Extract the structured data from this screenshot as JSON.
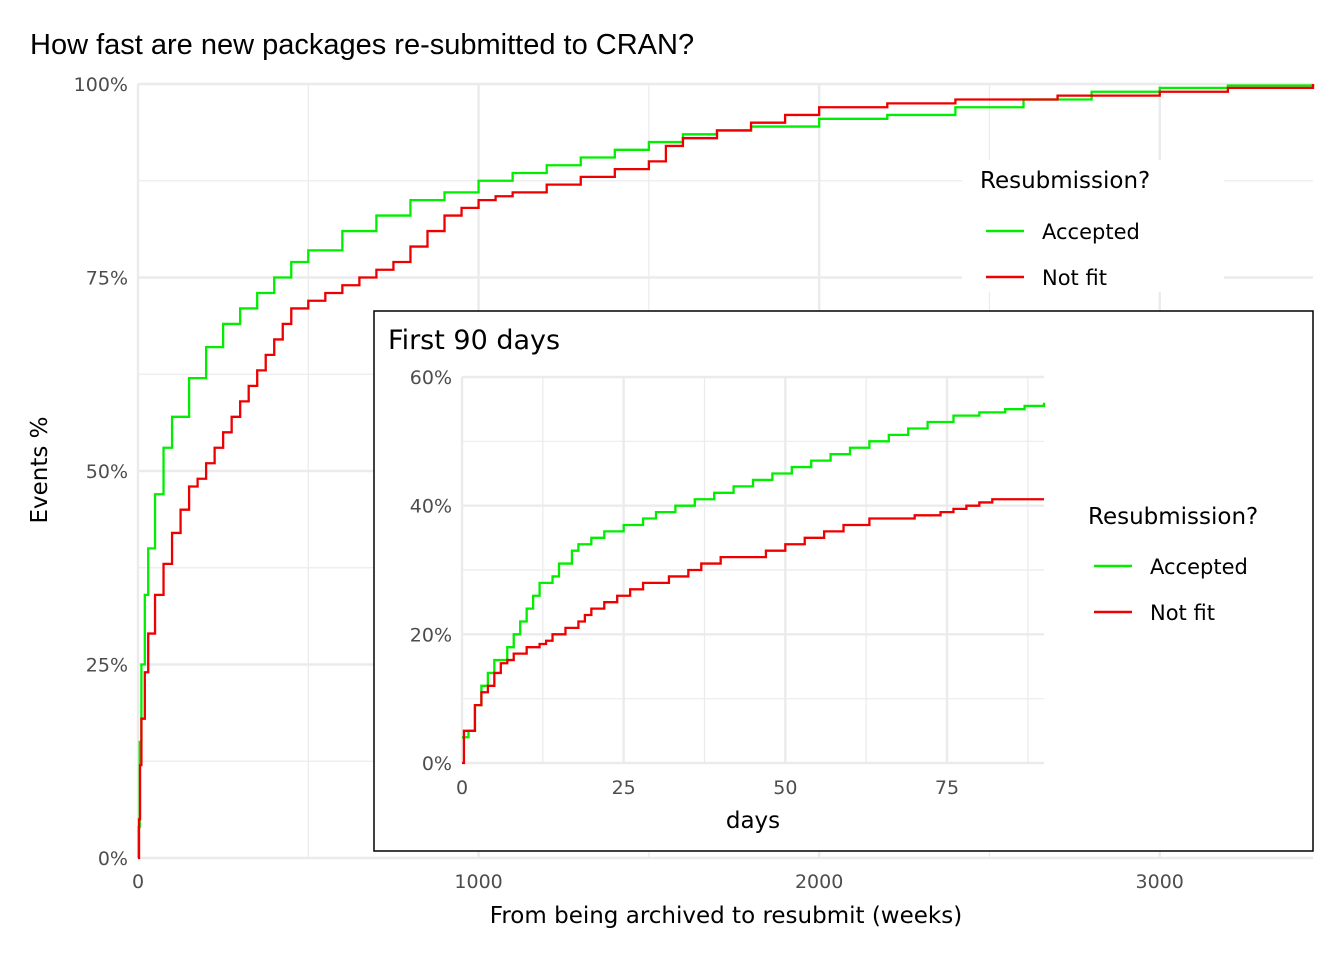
{
  "chart_data": [
    {
      "type": "line",
      "step": true,
      "title": "How fast are new packages re-submitted to CRAN?",
      "xlabel": "From being archived to resubmit (weeks)",
      "ylabel": "Events %",
      "xlim": [
        0,
        3450
      ],
      "ylim": [
        0,
        1
      ],
      "x_ticks": [
        0,
        1000,
        2000,
        3000
      ],
      "x_tick_labels": [
        "0",
        "1000",
        "2000",
        "3000"
      ],
      "y_ticks": [
        0,
        0.25,
        0.5,
        0.75,
        1
      ],
      "y_tick_labels": [
        "0%",
        "25%",
        "50%",
        "75%",
        "100%"
      ],
      "grid": true,
      "legend": {
        "title": "Resubmission?",
        "position": "top-right"
      },
      "series": [
        {
          "name": "Accepted",
          "color": "#00EE00",
          "points": [
            [
              0,
              0
            ],
            [
              2,
              0.04
            ],
            [
              5,
              0.15
            ],
            [
              10,
              0.25
            ],
            [
              20,
              0.34
            ],
            [
              30,
              0.4
            ],
            [
              50,
              0.47
            ],
            [
              75,
              0.53
            ],
            [
              100,
              0.57
            ],
            [
              150,
              0.62
            ],
            [
              200,
              0.66
            ],
            [
              250,
              0.69
            ],
            [
              300,
              0.71
            ],
            [
              350,
              0.73
            ],
            [
              400,
              0.75
            ],
            [
              450,
              0.77
            ],
            [
              500,
              0.785
            ],
            [
              600,
              0.81
            ],
            [
              700,
              0.83
            ],
            [
              800,
              0.85
            ],
            [
              900,
              0.86
            ],
            [
              1000,
              0.875
            ],
            [
              1100,
              0.885
            ],
            [
              1200,
              0.895
            ],
            [
              1300,
              0.905
            ],
            [
              1400,
              0.915
            ],
            [
              1500,
              0.925
            ],
            [
              1600,
              0.935
            ],
            [
              1700,
              0.94
            ],
            [
              1800,
              0.945
            ],
            [
              2000,
              0.955
            ],
            [
              2200,
              0.96
            ],
            [
              2400,
              0.97
            ],
            [
              2600,
              0.98
            ],
            [
              2800,
              0.99
            ],
            [
              3000,
              0.995
            ],
            [
              3200,
              0.998
            ],
            [
              3450,
              1.0
            ]
          ]
        },
        {
          "name": "Not fit",
          "color": "#EE0000",
          "points": [
            [
              0,
              0
            ],
            [
              3,
              0.05
            ],
            [
              6,
              0.12
            ],
            [
              10,
              0.18
            ],
            [
              20,
              0.24
            ],
            [
              30,
              0.29
            ],
            [
              50,
              0.34
            ],
            [
              75,
              0.38
            ],
            [
              100,
              0.42
            ],
            [
              125,
              0.45
            ],
            [
              150,
              0.48
            ],
            [
              175,
              0.49
            ],
            [
              200,
              0.51
            ],
            [
              225,
              0.53
            ],
            [
              250,
              0.55
            ],
            [
              275,
              0.57
            ],
            [
              300,
              0.59
            ],
            [
              325,
              0.61
            ],
            [
              350,
              0.63
            ],
            [
              375,
              0.65
            ],
            [
              400,
              0.67
            ],
            [
              425,
              0.69
            ],
            [
              450,
              0.71
            ],
            [
              500,
              0.72
            ],
            [
              550,
              0.73
            ],
            [
              600,
              0.74
            ],
            [
              650,
              0.75
            ],
            [
              700,
              0.76
            ],
            [
              750,
              0.77
            ],
            [
              800,
              0.79
            ],
            [
              850,
              0.81
            ],
            [
              900,
              0.83
            ],
            [
              950,
              0.84
            ],
            [
              1000,
              0.85
            ],
            [
              1050,
              0.855
            ],
            [
              1100,
              0.86
            ],
            [
              1200,
              0.87
            ],
            [
              1300,
              0.88
            ],
            [
              1400,
              0.89
            ],
            [
              1500,
              0.9
            ],
            [
              1550,
              0.92
            ],
            [
              1600,
              0.93
            ],
            [
              1700,
              0.94
            ],
            [
              1800,
              0.95
            ],
            [
              1900,
              0.96
            ],
            [
              2000,
              0.97
            ],
            [
              2200,
              0.975
            ],
            [
              2400,
              0.98
            ],
            [
              2700,
              0.985
            ],
            [
              3000,
              0.99
            ],
            [
              3200,
              0.995
            ],
            [
              3450,
              1.0
            ]
          ]
        }
      ]
    },
    {
      "type": "line",
      "step": true,
      "title": "First 90 days",
      "xlabel": "days",
      "ylabel": "",
      "xlim": [
        0,
        90
      ],
      "ylim": [
        0,
        0.6
      ],
      "x_ticks": [
        0,
        25,
        50,
        75
      ],
      "x_tick_labels": [
        "0",
        "25",
        "50",
        "75"
      ],
      "y_ticks": [
        0,
        0.2,
        0.4,
        0.6
      ],
      "y_tick_labels": [
        "0%",
        "20%",
        "40%",
        "60%"
      ],
      "grid": true,
      "legend": {
        "title": "Resubmission?",
        "position": "right"
      },
      "series": [
        {
          "name": "Accepted",
          "color": "#00EE00",
          "points": [
            [
              0,
              0.04
            ],
            [
              1,
              0.05
            ],
            [
              2,
              0.09
            ],
            [
              3,
              0.12
            ],
            [
              4,
              0.14
            ],
            [
              5,
              0.16
            ],
            [
              7,
              0.18
            ],
            [
              8,
              0.2
            ],
            [
              9,
              0.22
            ],
            [
              10,
              0.24
            ],
            [
              11,
              0.26
            ],
            [
              12,
              0.28
            ],
            [
              14,
              0.29
            ],
            [
              15,
              0.31
            ],
            [
              17,
              0.33
            ],
            [
              18,
              0.34
            ],
            [
              20,
              0.35
            ],
            [
              22,
              0.36
            ],
            [
              25,
              0.37
            ],
            [
              28,
              0.38
            ],
            [
              30,
              0.39
            ],
            [
              33,
              0.4
            ],
            [
              36,
              0.41
            ],
            [
              39,
              0.42
            ],
            [
              42,
              0.43
            ],
            [
              45,
              0.44
            ],
            [
              48,
              0.45
            ],
            [
              51,
              0.46
            ],
            [
              54,
              0.47
            ],
            [
              57,
              0.48
            ],
            [
              60,
              0.49
            ],
            [
              63,
              0.5
            ],
            [
              66,
              0.51
            ],
            [
              69,
              0.52
            ],
            [
              72,
              0.53
            ],
            [
              76,
              0.54
            ],
            [
              80,
              0.545
            ],
            [
              84,
              0.55
            ],
            [
              87,
              0.555
            ],
            [
              90,
              0.56
            ]
          ]
        },
        {
          "name": "Not fit",
          "color": "#EE0000",
          "points": [
            [
              0,
              0
            ],
            [
              0.3,
              0.05
            ],
            [
              2,
              0.09
            ],
            [
              3,
              0.11
            ],
            [
              4,
              0.12
            ],
            [
              5,
              0.14
            ],
            [
              6,
              0.155
            ],
            [
              7,
              0.16
            ],
            [
              8,
              0.17
            ],
            [
              10,
              0.18
            ],
            [
              12,
              0.185
            ],
            [
              13,
              0.19
            ],
            [
              14,
              0.2
            ],
            [
              16,
              0.21
            ],
            [
              18,
              0.22
            ],
            [
              19,
              0.23
            ],
            [
              20,
              0.24
            ],
            [
              22,
              0.25
            ],
            [
              24,
              0.26
            ],
            [
              26,
              0.27
            ],
            [
              28,
              0.28
            ],
            [
              32,
              0.29
            ],
            [
              35,
              0.3
            ],
            [
              37,
              0.31
            ],
            [
              40,
              0.32
            ],
            [
              47,
              0.33
            ],
            [
              50,
              0.34
            ],
            [
              53,
              0.35
            ],
            [
              56,
              0.36
            ],
            [
              59,
              0.37
            ],
            [
              63,
              0.38
            ],
            [
              70,
              0.385
            ],
            [
              74,
              0.39
            ],
            [
              76,
              0.395
            ],
            [
              78,
              0.4
            ],
            [
              80,
              0.405
            ],
            [
              82,
              0.41
            ],
            [
              90,
              0.41
            ]
          ]
        }
      ]
    }
  ]
}
